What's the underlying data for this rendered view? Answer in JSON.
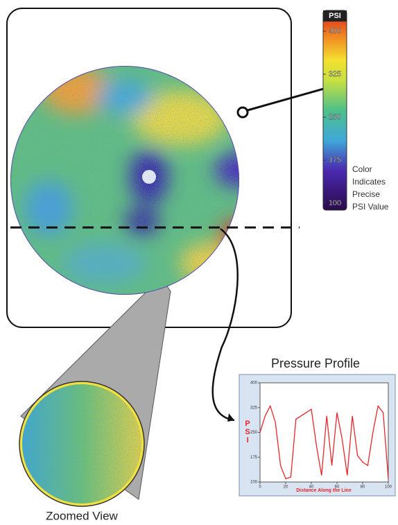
{
  "colorbar": {
    "title": "PSI",
    "lim": [
      100,
      400
    ],
    "ticks": [
      400,
      325,
      250,
      175,
      100
    ],
    "caption": [
      "Color",
      "Indicates",
      "Precise",
      "PSI Value"
    ]
  },
  "profile": {
    "title": "Pressure Profile",
    "y_label": "PSI",
    "x_label": "Distance Along the Line",
    "xlim": [
      0,
      100
    ],
    "ylim": [
      100,
      400
    ],
    "xticks": [
      0,
      20,
      40,
      60,
      80,
      100
    ],
    "yticks": [
      100,
      175,
      250,
      325,
      400
    ],
    "color": "#e8262a",
    "x": [
      0,
      4,
      8,
      12,
      16,
      20,
      24,
      28,
      32,
      36,
      40,
      44,
      48,
      52,
      56,
      60,
      64,
      68,
      72,
      76,
      80,
      84,
      88,
      92,
      96,
      100
    ],
    "values": [
      250,
      300,
      330,
      280,
      150,
      110,
      115,
      290,
      300,
      310,
      320,
      210,
      120,
      300,
      150,
      310,
      230,
      120,
      300,
      180,
      160,
      150,
      250,
      330,
      310,
      110
    ]
  },
  "zoom_label": "Zoomed View"
}
